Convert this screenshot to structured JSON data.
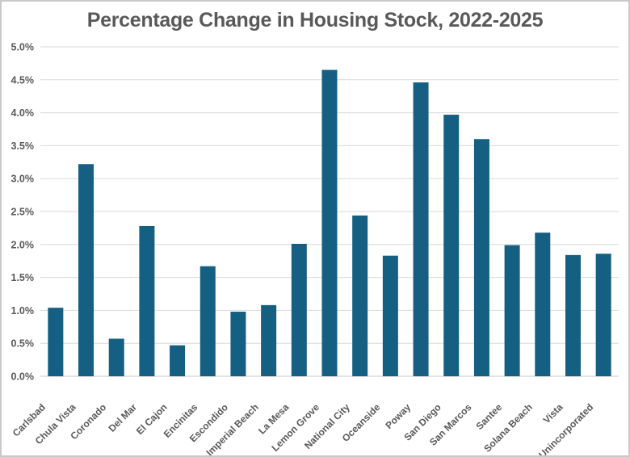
{
  "chart_data": {
    "type": "bar",
    "title": "Percentage Change in Housing Stock, 2022-2025",
    "categories": [
      "Carlsbad",
      "Chula Vista",
      "Coronado",
      "Del Mar",
      "El Cajon",
      "Encinitas",
      "Escondido",
      "Imperial Beach",
      "La Mesa",
      "Lemon Grove",
      "National City",
      "Oceanside",
      "Poway",
      "San Diego",
      "San Marcos",
      "Santee",
      "Solana Beach",
      "Vista",
      "Unincorporated"
    ],
    "values": [
      1.04,
      3.22,
      0.57,
      2.28,
      0.47,
      1.67,
      0.98,
      1.08,
      2.01,
      4.65,
      2.44,
      1.83,
      4.46,
      3.97,
      3.6,
      1.99,
      2.18,
      1.84,
      1.86
    ],
    "unit": "%",
    "xlabel": "",
    "ylabel": "",
    "ylim": [
      0,
      5.0
    ],
    "y_tick_step": 0.5,
    "y_ticks": [
      "0.0%",
      "0.5%",
      "1.0%",
      "1.5%",
      "2.0%",
      "2.5%",
      "3.0%",
      "3.5%",
      "4.0%",
      "4.5%",
      "5.0%"
    ],
    "grid": "horizontal",
    "legend": "none",
    "x_label_rotation_deg": 45,
    "colors": {
      "bar": "#156082",
      "text": "#595959",
      "gridline": "#d9d9d9",
      "axis_line": "#c9c9c9",
      "frame_border": "#c9c9c9",
      "background": "#ffffff"
    }
  }
}
